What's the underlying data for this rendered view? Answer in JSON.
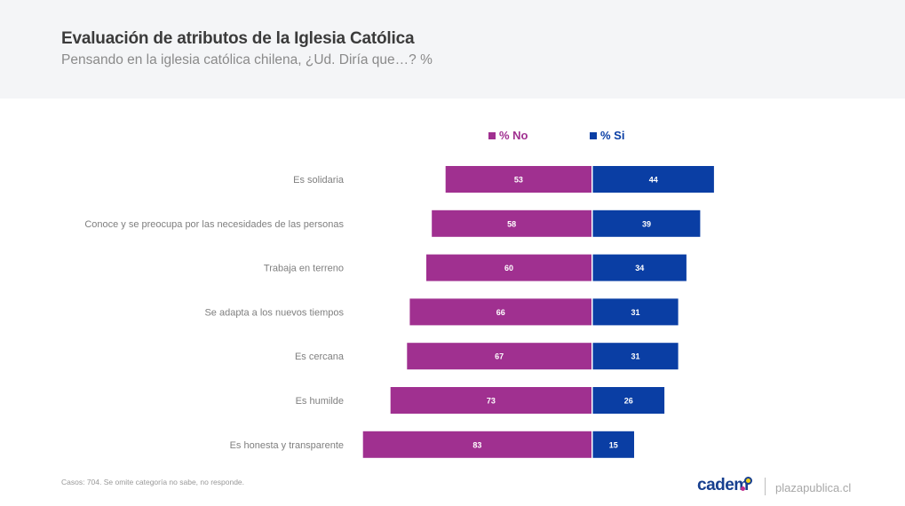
{
  "header": {
    "title": "Evaluación de atributos de la Iglesia Católica",
    "subtitle": "Pensando en la iglesia católica chilena, ¿Ud. Diría que…? %"
  },
  "footer": {
    "note": "Casos: 704. Se omite categoría no sabe, no responde.",
    "brand": "cadem",
    "site": "plazapublica.cl"
  },
  "colors": {
    "no": "#a03090",
    "si": "#0a3ea4"
  },
  "chart_data": {
    "type": "bar",
    "orientation": "horizontal-diverging",
    "title": "Evaluación de atributos de la Iglesia Católica",
    "subtitle": "Pensando en la iglesia católica chilena, ¿Ud. Diría que…? %",
    "legend_position": "top-center",
    "categories": [
      "Es solidaria",
      "Conoce y se preocupa por las necesidades de las personas",
      "Trabaja en terreno",
      "Se adapta a los nuevos tiempos",
      "Es cercana",
      "Es humilde",
      "Es honesta y transparente"
    ],
    "series": [
      {
        "name": "% No",
        "color": "#a03090",
        "direction": "left",
        "values": [
          53,
          58,
          60,
          66,
          67,
          73,
          83
        ]
      },
      {
        "name": "% Si",
        "color": "#0a3ea4",
        "direction": "right",
        "values": [
          44,
          39,
          34,
          31,
          31,
          26,
          15
        ]
      }
    ],
    "xlim": [
      -100,
      100
    ],
    "grid": false
  }
}
